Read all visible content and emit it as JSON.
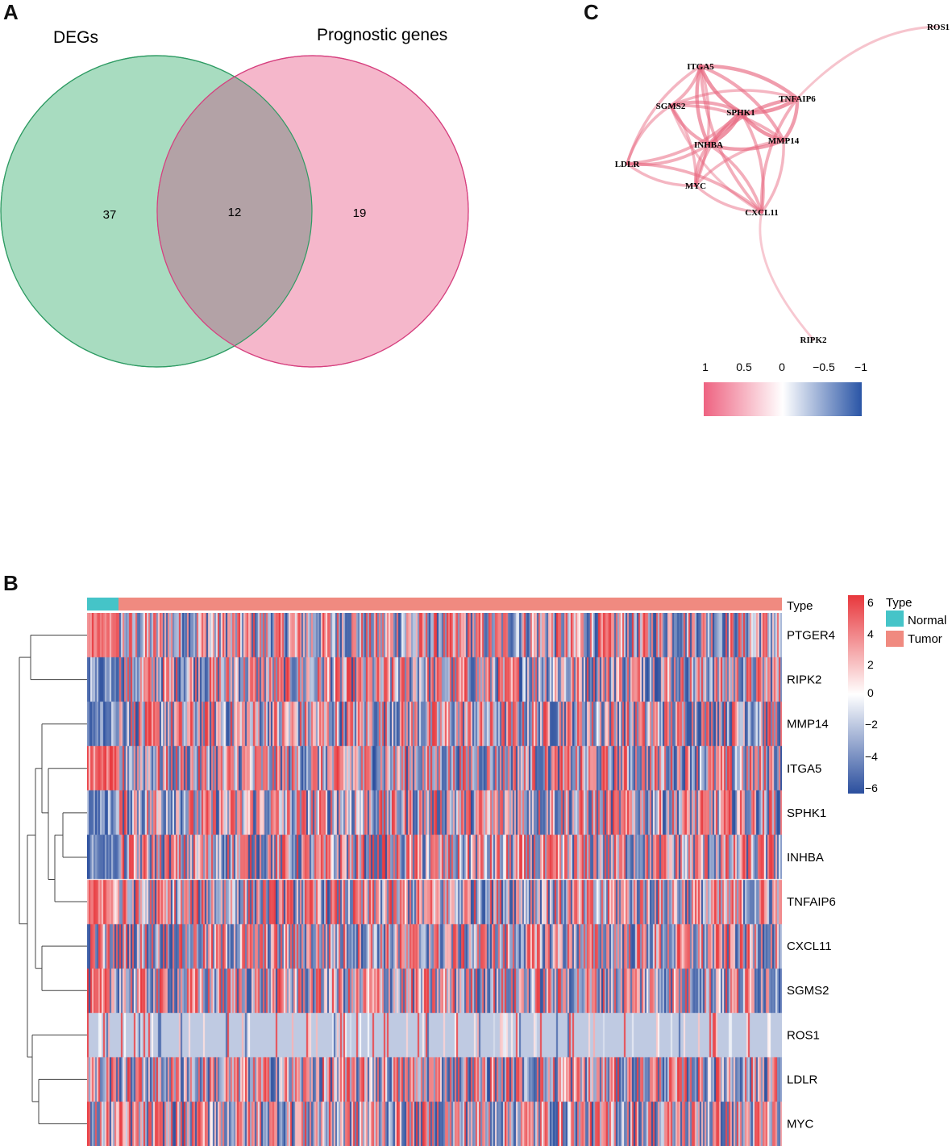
{
  "panels": {
    "a": "A",
    "b": "B",
    "c": "C"
  },
  "colors": {
    "degs_fill": "#a8dcc0",
    "degs_stroke": "#2e9b63",
    "prog_fill": "#f5b7cb",
    "prog_stroke": "#d6407f",
    "overlap_fill": "#b3a2a6",
    "edge": "#e8667f",
    "normal": "#45c4c8",
    "tumor": "#f08a80",
    "heat_low": "#2b4f9e",
    "heat_mid": "#ffffff",
    "heat_high": "#e8373c",
    "net_low": "#2a55a6",
    "net_high": "#ee6381"
  },
  "chart_data": [
    {
      "panel": "A",
      "type": "venn",
      "sets": [
        {
          "name": "DEGs",
          "only": 37
        },
        {
          "name": "Prognostic genes",
          "only": 19
        }
      ],
      "overlap": 12
    },
    {
      "panel": "C",
      "type": "network",
      "nodes": [
        "ITGA5",
        "SGMS2",
        "SPHK1",
        "TNFAIP6",
        "INHBA",
        "MMP14",
        "LDLR",
        "MYC",
        "CXCL11",
        "ROS1",
        "RIPK2"
      ],
      "edges": [
        [
          "ITGA5",
          "SGMS2",
          0.6
        ],
        [
          "ITGA5",
          "SPHK1",
          0.9
        ],
        [
          "ITGA5",
          "TNFAIP6",
          0.8
        ],
        [
          "ITGA5",
          "INHBA",
          0.8
        ],
        [
          "ITGA5",
          "MMP14",
          0.7
        ],
        [
          "ITGA5",
          "LDLR",
          0.5
        ],
        [
          "ITGA5",
          "MYC",
          0.5
        ],
        [
          "ITGA5",
          "CXCL11",
          0.6
        ],
        [
          "SGMS2",
          "SPHK1",
          0.7
        ],
        [
          "SGMS2",
          "INHBA",
          0.7
        ],
        [
          "SGMS2",
          "MMP14",
          0.6
        ],
        [
          "SGMS2",
          "LDLR",
          0.5
        ],
        [
          "SGMS2",
          "MYC",
          0.5
        ],
        [
          "SGMS2",
          "CXCL11",
          0.4
        ],
        [
          "SGMS2",
          "TNFAIP6",
          0.5
        ],
        [
          "SPHK1",
          "TNFAIP6",
          0.9
        ],
        [
          "SPHK1",
          "INHBA",
          0.9
        ],
        [
          "SPHK1",
          "MMP14",
          0.9
        ],
        [
          "SPHK1",
          "LDLR",
          0.6
        ],
        [
          "SPHK1",
          "MYC",
          0.6
        ],
        [
          "SPHK1",
          "CXCL11",
          0.6
        ],
        [
          "TNFAIP6",
          "INHBA",
          0.8
        ],
        [
          "TNFAIP6",
          "MMP14",
          0.8
        ],
        [
          "TNFAIP6",
          "CXCL11",
          0.6
        ],
        [
          "TNFAIP6",
          "ROS1",
          0.35
        ],
        [
          "INHBA",
          "MMP14",
          0.8
        ],
        [
          "INHBA",
          "LDLR",
          0.6
        ],
        [
          "INHBA",
          "MYC",
          0.6
        ],
        [
          "INHBA",
          "CXCL11",
          0.6
        ],
        [
          "MMP14",
          "MYC",
          0.5
        ],
        [
          "MMP14",
          "CXCL11",
          0.5
        ],
        [
          "LDLR",
          "MYC",
          0.5
        ],
        [
          "LDLR",
          "CXCL11",
          0.6
        ],
        [
          "MYC",
          "CXCL11",
          0.5
        ],
        [
          "CXCL11",
          "RIPK2",
          0.3
        ]
      ],
      "legend": {
        "ticks": [
          "1",
          "0.5",
          "0",
          "−0.5",
          "−1"
        ],
        "values": [
          1,
          0.5,
          0,
          -0.5,
          -1
        ]
      }
    },
    {
      "panel": "B",
      "type": "heatmap",
      "annotation_title": "Type",
      "groups": [
        {
          "name": "Normal",
          "count": 19
        },
        {
          "name": "Tumor",
          "count": 401
        }
      ],
      "genes": [
        "PTGER4",
        "RIPK2",
        "MMP14",
        "ITGA5",
        "SPHK1",
        "INHBA",
        "TNFAIP6",
        "CXCL11",
        "SGMS2",
        "ROS1",
        "LDLR",
        "MYC"
      ],
      "color_scale": {
        "min": -6,
        "max": 6,
        "ticks": [
          "6",
          "4",
          "2",
          "0",
          "−2",
          "−4",
          "−6"
        ],
        "tick_values": [
          6,
          4,
          2,
          0,
          -2,
          -4,
          -6
        ]
      },
      "legend_title": "Type",
      "legend_items": [
        "Normal",
        "Tumor"
      ]
    }
  ]
}
